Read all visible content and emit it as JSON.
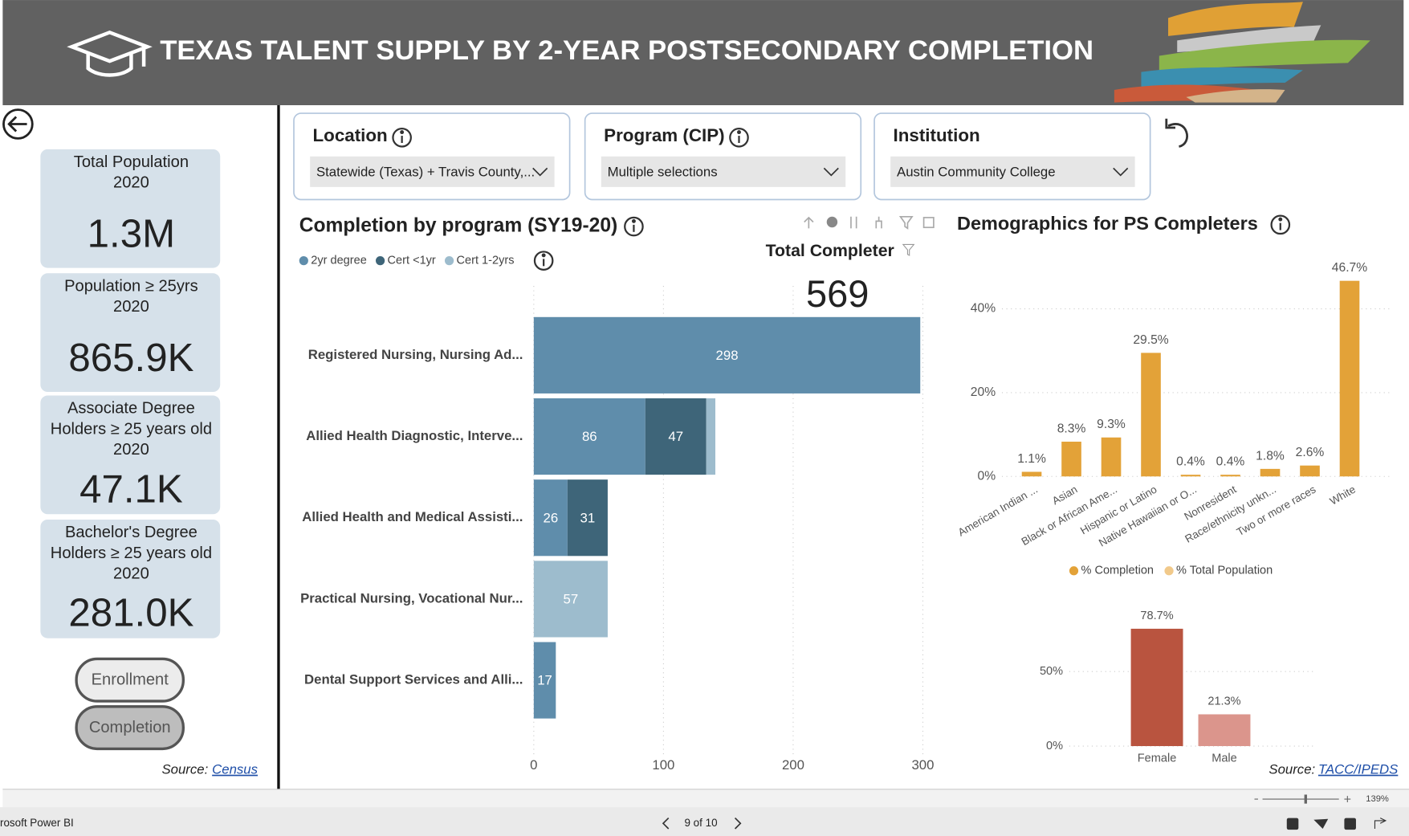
{
  "header": {
    "title": "TEXAS TALENT SUPPLY BY 2-YEAR POSTSECONDARY COMPLETION"
  },
  "kpis": [
    {
      "label": [
        "Total Population",
        "2020"
      ],
      "value": "1.3M"
    },
    {
      "label": [
        "Population ≥ 25yrs",
        "2020"
      ],
      "value": "865.9K"
    },
    {
      "label": [
        "Associate Degree",
        "Holders ≥ 25 years old",
        "2020"
      ],
      "value": "47.1K"
    },
    {
      "label": [
        "Bachelor's Degree",
        "Holders ≥ 25 years old",
        "2020"
      ],
      "value": "281.0K"
    }
  ],
  "nav": [
    "Enrollment",
    "Completion"
  ],
  "source_left": {
    "prefix": "Source:",
    "link": "Census"
  },
  "filters": [
    {
      "label": "Location",
      "value": "Statewide (Texas) + Travis County,..."
    },
    {
      "label": "Program (CIP)",
      "value": "Multiple selections"
    },
    {
      "label": "Institution",
      "value": "Austin Community College"
    }
  ],
  "chart_data": [
    {
      "type": "bar",
      "orientation": "horizontal",
      "stacked": true,
      "title": "Completion by program (SY19-20)",
      "total_label": "Total Completer",
      "total_value": 569,
      "categories": [
        "Registered Nursing, Nursing Ad...",
        "Allied Health Diagnostic, Interve...",
        "Allied Health and Medical Assisti...",
        "Practical Nursing, Vocational Nur...",
        "Dental Support Services and Alli..."
      ],
      "series": [
        {
          "name": "2yr degree",
          "color": "#5f8dab",
          "values": [
            298,
            86,
            26,
            null,
            17
          ]
        },
        {
          "name": "Cert <1yr",
          "color": "#3e6579",
          "values": [
            null,
            47,
            31,
            null,
            null
          ]
        },
        {
          "name": "Cert 1-2yrs",
          "color": "#9dbccd",
          "values": [
            null,
            7,
            null,
            57,
            null
          ]
        }
      ],
      "xlim": [
        0,
        300
      ],
      "xticks": [
        0,
        100,
        200,
        300
      ],
      "grid": true
    },
    {
      "type": "bar",
      "orientation": "vertical",
      "title": "Demographics for PS Completers",
      "categories": [
        "American Indian ...",
        "Asian",
        "Black or African Ame...",
        "Hispanic or Latino",
        "Native Hawaiian or O...",
        "Nonresident",
        "Race/ethnicity unkn...",
        "Two or more races",
        "White"
      ],
      "series": [
        {
          "name": "% Completion",
          "color": "#e3a238",
          "values": [
            1.1,
            8.3,
            9.3,
            29.5,
            0.4,
            0.4,
            1.8,
            2.6,
            46.7
          ],
          "value_labels": [
            "1.1%",
            "8.3%",
            "9.3%",
            "29.5%",
            "0.4%",
            "0.4%",
            "1.8%",
            "2.6%",
            "46.7%"
          ]
        },
        {
          "name": "% Total Population",
          "color": "#f1c98a",
          "values": [
            null,
            null,
            null,
            null,
            null,
            null,
            null,
            null,
            null
          ]
        }
      ],
      "ylim": [
        0,
        50
      ],
      "yticks": [
        {
          "value": 0,
          "label": "0%"
        },
        {
          "value": 20,
          "label": "20%"
        },
        {
          "value": 40,
          "label": "40%"
        }
      ],
      "grid": true
    },
    {
      "type": "bar",
      "orientation": "vertical",
      "categories": [
        "Female",
        "Male"
      ],
      "values": [
        78.7,
        21.3
      ],
      "value_labels": [
        "78.7%",
        "21.3%"
      ],
      "colors": [
        "#b9543f",
        "#db958c"
      ],
      "ylim": [
        0,
        85
      ],
      "yticks": [
        {
          "value": 0,
          "label": "0%"
        },
        {
          "value": 50,
          "label": "50%"
        }
      ],
      "grid": true
    }
  ],
  "source_right": {
    "prefix": "Source:",
    "link": "TACC/IPEDS"
  },
  "footer": {
    "app": "rosoft Power BI",
    "page": "9 of 10",
    "zoom": "139%"
  }
}
